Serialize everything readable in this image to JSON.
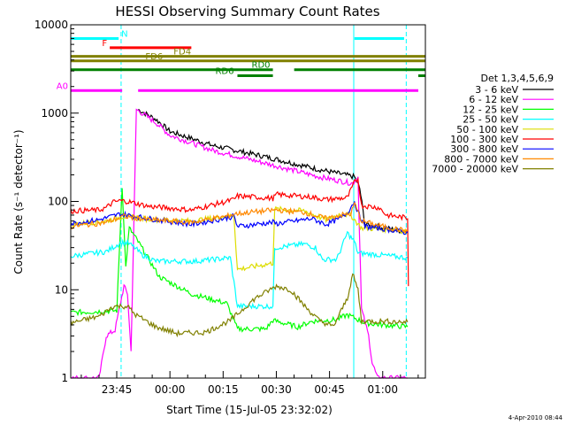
{
  "chart_data": {
    "type": "line",
    "title": "HESSI Observing Summary Count Rates",
    "xlabel": "Start Time (15-Jul-05 23:32:02)",
    "ylabel": "Count Rate (s⁻¹ detector⁻¹)",
    "x_unit": "minutes after 23:32:02",
    "xlim": [
      0,
      100
    ],
    "ylim": [
      1,
      10000
    ],
    "y_scale": "log",
    "grid": false,
    "x_ticks": [
      {
        "x": 12.97,
        "label": "23:45"
      },
      {
        "x": 27.97,
        "label": "00:00"
      },
      {
        "x": 42.97,
        "label": "00:15"
      },
      {
        "x": 57.97,
        "label": "00:30"
      },
      {
        "x": 72.97,
        "label": "00:45"
      },
      {
        "x": 87.97,
        "label": "01:00"
      }
    ],
    "y_ticks": [
      {
        "y": 1,
        "label": "1"
      },
      {
        "y": 10,
        "label": "10"
      },
      {
        "y": 100,
        "label": "100"
      },
      {
        "y": 1000,
        "label": "1000"
      },
      {
        "y": 10000,
        "label": "10000"
      }
    ],
    "legend_title": "Det 1,3,4,5,6,9",
    "legend_position": "right",
    "series": [
      {
        "name": "3 - 6 keV",
        "color": "#000000",
        "points": [
          [
            19,
            1100
          ],
          [
            24,
            850
          ],
          [
            28,
            620
          ],
          [
            40,
            430
          ],
          [
            55,
            320
          ],
          [
            70,
            230
          ],
          [
            80,
            190
          ],
          [
            81.5,
            140
          ],
          [
            83,
            55
          ],
          [
            95,
            45
          ]
        ]
      },
      {
        "name": "6 - 12 keV",
        "color": "#ff00ff",
        "points": [
          [
            0,
            1
          ],
          [
            8,
            1
          ],
          [
            10,
            3
          ],
          [
            12.5,
            3.5
          ],
          [
            15,
            11
          ],
          [
            16,
            9
          ],
          [
            17,
            2
          ],
          [
            18.5,
            1100
          ],
          [
            24,
            780
          ],
          [
            28,
            560
          ],
          [
            40,
            380
          ],
          [
            55,
            270
          ],
          [
            70,
            190
          ],
          [
            79.5,
            160
          ],
          [
            81,
            190
          ],
          [
            82,
            6
          ],
          [
            84,
            3
          ],
          [
            85,
            1.5
          ],
          [
            86.5,
            1
          ],
          [
            95,
            1
          ]
        ]
      },
      {
        "name": "12 - 25 keV",
        "color": "#00ff00",
        "points": [
          [
            0,
            5.5
          ],
          [
            13,
            5.8
          ],
          [
            14.5,
            150
          ],
          [
            15.5,
            18
          ],
          [
            16.5,
            50
          ],
          [
            19,
            35
          ],
          [
            25,
            14
          ],
          [
            34,
            9
          ],
          [
            44,
            7
          ],
          [
            47,
            3.6
          ],
          [
            55,
            3.6
          ],
          [
            57,
            4.5
          ],
          [
            64,
            3.8
          ],
          [
            68,
            4.4
          ],
          [
            75,
            4.6
          ],
          [
            78,
            5.2
          ],
          [
            80,
            4.8
          ],
          [
            83,
            4.2
          ],
          [
            88,
            4
          ],
          [
            95,
            3.8
          ]
        ]
      },
      {
        "name": "25 - 50 keV",
        "color": "#00ffff",
        "points": [
          [
            0,
            24
          ],
          [
            10,
            27
          ],
          [
            14,
            34
          ],
          [
            16,
            34
          ],
          [
            18,
            30
          ],
          [
            20,
            25
          ],
          [
            24,
            21
          ],
          [
            35,
            21
          ],
          [
            45,
            23
          ],
          [
            47,
            6.5
          ],
          [
            57,
            6.5
          ],
          [
            57.5,
            30
          ],
          [
            66,
            33
          ],
          [
            69,
            30
          ],
          [
            71,
            22
          ],
          [
            75,
            22
          ],
          [
            78,
            44
          ],
          [
            80,
            35
          ],
          [
            81,
            26
          ],
          [
            86,
            25
          ],
          [
            95,
            23
          ]
        ]
      },
      {
        "name": "50 - 100 keV",
        "color": "#dddd00",
        "points": [
          [
            0,
            55
          ],
          [
            10,
            60
          ],
          [
            15,
            68
          ],
          [
            22,
            63
          ],
          [
            34,
            60
          ],
          [
            44,
            68
          ],
          [
            46,
            70
          ],
          [
            47,
            17
          ],
          [
            57,
            20
          ],
          [
            57.5,
            82
          ],
          [
            66,
            78
          ],
          [
            68,
            72
          ],
          [
            72,
            62
          ],
          [
            76,
            72
          ],
          [
            79,
            70
          ],
          [
            80,
            62
          ],
          [
            82,
            50
          ],
          [
            90,
            48
          ],
          [
            95,
            46
          ]
        ]
      },
      {
        "name": "100 - 300 keV",
        "color": "#ff0000",
        "points": [
          [
            0,
            78
          ],
          [
            8,
            80
          ],
          [
            10,
            85
          ],
          [
            12,
            98
          ],
          [
            14,
            102
          ],
          [
            16,
            100
          ],
          [
            22,
            88
          ],
          [
            34,
            80
          ],
          [
            44,
            100
          ],
          [
            46,
            105
          ],
          [
            47,
            115
          ],
          [
            55,
            110
          ],
          [
            57,
            108
          ],
          [
            58,
            120
          ],
          [
            68,
            112
          ],
          [
            72,
            105
          ],
          [
            78,
            110
          ],
          [
            80,
            165
          ],
          [
            81,
            180
          ],
          [
            82,
            90
          ],
          [
            87,
            85
          ],
          [
            89,
            70
          ],
          [
            95,
            65
          ],
          [
            95.2,
            11
          ]
        ]
      },
      {
        "name": "300 - 800 keV",
        "color": "#0000ff",
        "points": [
          [
            0,
            56
          ],
          [
            8,
            62
          ],
          [
            14,
            72
          ],
          [
            22,
            64
          ],
          [
            34,
            55
          ],
          [
            44,
            65
          ],
          [
            46,
            68
          ],
          [
            47,
            52
          ],
          [
            57,
            58
          ],
          [
            58,
            56
          ],
          [
            68,
            64
          ],
          [
            72,
            55
          ],
          [
            76,
            64
          ],
          [
            78,
            75
          ],
          [
            80,
            100
          ],
          [
            81,
            75
          ],
          [
            83,
            52
          ],
          [
            90,
            48
          ],
          [
            95,
            44
          ]
        ]
      },
      {
        "name": "800 - 7000 keV",
        "color": "#ff8800",
        "points": [
          [
            0,
            52
          ],
          [
            10,
            58
          ],
          [
            15,
            68
          ],
          [
            22,
            62
          ],
          [
            34,
            58
          ],
          [
            44,
            68
          ],
          [
            46,
            72
          ],
          [
            50,
            75
          ],
          [
            58,
            80
          ],
          [
            66,
            75
          ],
          [
            72,
            64
          ],
          [
            76,
            70
          ],
          [
            79,
            72
          ],
          [
            80,
            95
          ],
          [
            81,
            76
          ],
          [
            82,
            60
          ],
          [
            88,
            52
          ],
          [
            95,
            46
          ]
        ]
      },
      {
        "name": "7000 - 20000 keV",
        "color": "#808000",
        "points": [
          [
            0,
            4.2
          ],
          [
            8,
            5
          ],
          [
            12,
            6.5
          ],
          [
            16,
            6.5
          ],
          [
            18,
            5.3
          ],
          [
            24,
            3.8
          ],
          [
            30,
            3.2
          ],
          [
            38,
            3.3
          ],
          [
            45,
            4.5
          ],
          [
            52,
            8
          ],
          [
            58,
            11
          ],
          [
            62,
            10
          ],
          [
            66,
            6.5
          ],
          [
            70,
            4.5
          ],
          [
            74,
            3.8
          ],
          [
            78,
            8
          ],
          [
            79.5,
            15
          ],
          [
            81,
            10
          ],
          [
            82,
            4.4
          ],
          [
            88,
            4.4
          ],
          [
            95,
            4.3
          ]
        ]
      }
    ],
    "flag_bars": [
      {
        "label": "N",
        "color": "#00ffff",
        "y": 7000,
        "segments": [
          [
            0,
            13.5
          ],
          [
            80,
            94
          ]
        ]
      },
      {
        "label": "F",
        "color": "#ff0000",
        "y": 5500,
        "segments": [
          [
            11,
            34
          ]
        ]
      },
      {
        "label": "FD4",
        "color": "#808000",
        "y": 4400,
        "segments": [
          [
            0,
            100
          ]
        ]
      },
      {
        "label": "FD6",
        "color": "#808000",
        "y": 3900,
        "segments": [
          [
            0,
            100
          ]
        ]
      },
      {
        "label": "RD0",
        "color": "#008000",
        "y": 3100,
        "segments": [
          [
            0,
            57
          ],
          [
            63,
            100
          ]
        ]
      },
      {
        "label": "RD6",
        "color": "#008000",
        "y": 2650,
        "segments": [
          [
            47,
            57
          ],
          [
            98,
            100
          ]
        ]
      },
      {
        "label": "A0",
        "color": "#ff00ff",
        "y": 1800,
        "segments": [
          [
            0,
            14.5
          ],
          [
            19,
            98
          ]
        ]
      }
    ],
    "vertical_markers": [
      {
        "x": 14.2,
        "color": "#00ffff",
        "style": "dashed"
      },
      {
        "x": 79.8,
        "color": "#00ffff",
        "style": "solid"
      },
      {
        "x": 94.6,
        "color": "#00ffff",
        "style": "dashed"
      }
    ],
    "footer_date": "4-Apr-2010 08:44"
  }
}
